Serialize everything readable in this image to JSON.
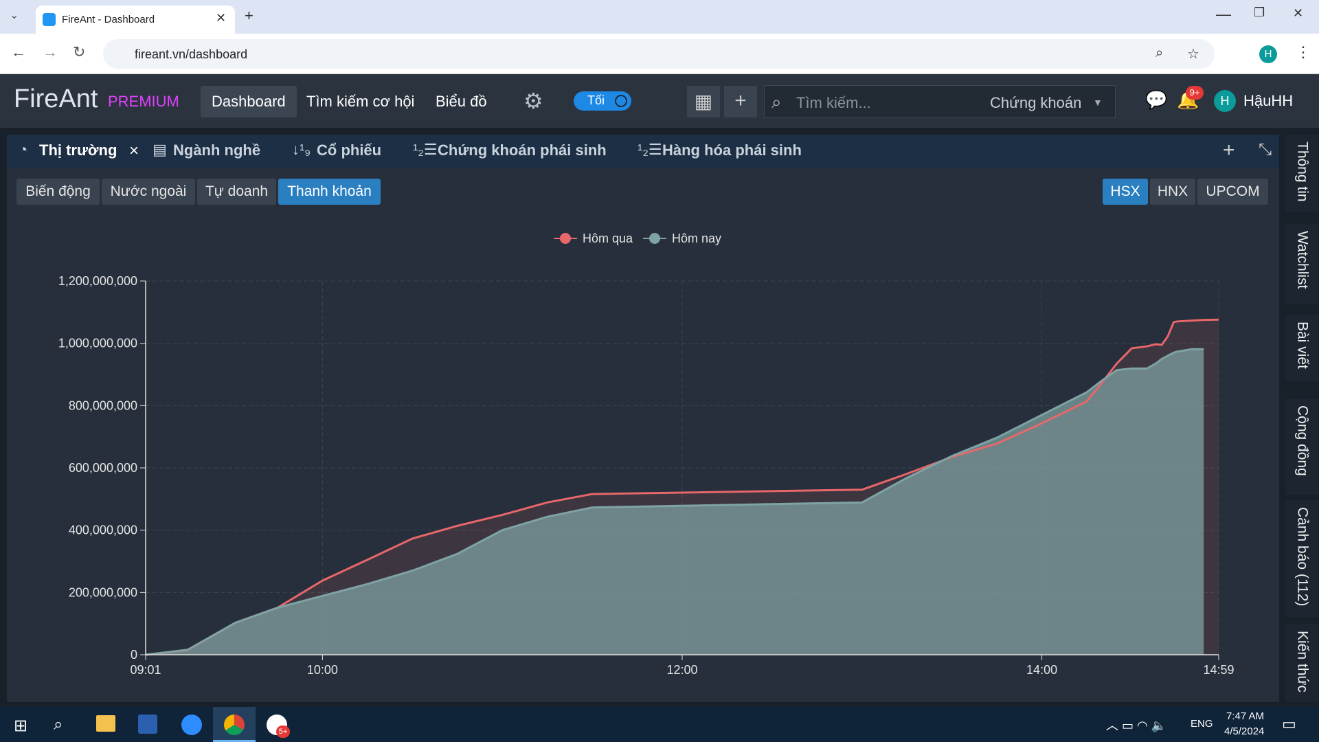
{
  "browser": {
    "tab_title": "FireAnt - Dashboard",
    "url": "fireant.vn/dashboard",
    "profile": "H"
  },
  "header": {
    "logo": "FireAnt",
    "tier": "PREMIUM",
    "nav": [
      "Dashboard",
      "Tìm kiếm cơ hội",
      "Biểu đồ"
    ],
    "active_nav": 0,
    "theme_toggle": "Tối",
    "search_placeholder": "Tìm kiếm...",
    "search_scope": "Chứng khoán",
    "notification_badge": "9+",
    "avatar": "H",
    "user": "HậuHH"
  },
  "tabs": {
    "items": [
      "Thị trường",
      "Ngành nghề",
      "Cổ phiếu",
      "Chứng khoán phái sinh",
      "Hàng hóa phái sinh"
    ],
    "active": 0
  },
  "subtabs": {
    "items": [
      "Biến động",
      "Nước ngoài",
      "Tự doanh",
      "Thanh khoản"
    ],
    "active": 3
  },
  "exchanges": {
    "items": [
      "HSX",
      "HNX",
      "UPCOM"
    ],
    "active": 0
  },
  "sidebar": [
    "Thông tin",
    "Watchlist",
    "Bài viết",
    "Cộng đồng",
    "Cảnh báo (112)",
    "Kiến thức"
  ],
  "taskbar": {
    "language": "ENG",
    "time": "7:47 AM",
    "date": "4/5/2024",
    "zalo_badge": "5+"
  },
  "chart_data": {
    "type": "area",
    "x": [
      "09:01",
      "09:15",
      "09:31",
      "09:45",
      "10:00",
      "10:15",
      "10:30",
      "10:45",
      "11:00",
      "11:15",
      "11:30",
      "13:00",
      "13:15",
      "13:30",
      "13:45",
      "14:00",
      "14:15",
      "14:20",
      "14:25",
      "14:30",
      "14:35",
      "14:38",
      "14:40",
      "14:42",
      "14:44",
      "14:45",
      "14:50",
      "14:54",
      "14:59"
    ],
    "series": [
      {
        "name": "Hôm qua",
        "color": "#e8676a",
        "values": [
          0,
          15000000,
          103000000,
          151000000,
          238000000,
          305000000,
          373000000,
          414000000,
          449000000,
          489000000,
          516000000,
          530000000,
          581000000,
          635000000,
          678000000,
          743000000,
          814000000,
          873000000,
          935000000,
          984000000,
          990000000,
          997000000,
          995000000,
          1022000000,
          1068000000,
          1070000000,
          1073000000,
          1075000000,
          1076000000
        ]
      },
      {
        "name": "Hôm nay",
        "color": "#7fa3a4",
        "values": [
          0,
          16000000,
          103000000,
          151000000,
          189000000,
          227000000,
          270000000,
          324000000,
          400000000,
          443000000,
          473000000,
          489000000,
          568000000,
          638000000,
          697000000,
          770000000,
          843000000,
          880000000,
          914000000,
          919000000,
          919000000,
          935000000,
          950000000,
          960000000,
          970000000,
          973000000,
          981000000,
          981000000,
          null
        ]
      }
    ],
    "xlim": [
      "09:01",
      "14:59"
    ],
    "xticks": [
      "09:01",
      "10:00",
      "12:00",
      "14:00",
      "14:59"
    ],
    "ylim": [
      0,
      1200000000
    ],
    "yticks": [
      0,
      {
        "value": 200000000,
        "label": "200,000,000"
      },
      {
        "value": 400000000,
        "label": "400,000,000"
      },
      {
        "value": 600000000,
        "label": "600,000,000"
      },
      {
        "value": 800000000,
        "label": "800,000,000"
      },
      {
        "value": 1000000000,
        "label": "1,000,000,000"
      },
      {
        "value": 1200000000,
        "label": "1,200,000,000"
      }
    ],
    "grid": true,
    "legend": "top"
  }
}
